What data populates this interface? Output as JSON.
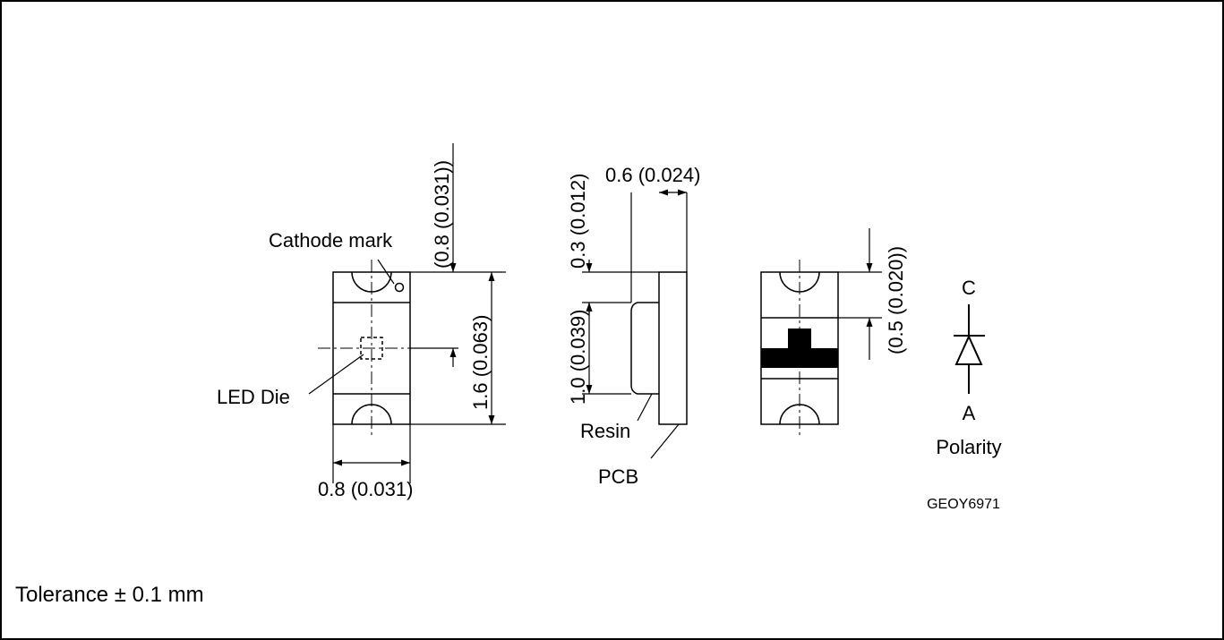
{
  "labels": {
    "cathode_mark": "Cathode mark",
    "led_die": "LED Die",
    "resin": "Resin",
    "pcb": "PCB",
    "polarity": "Polarity",
    "cathode_letter": "C",
    "anode_letter": "A",
    "drawing_code": "GEOY6971"
  },
  "dimensions": {
    "top_height": "(0.8 (0.031))",
    "length": "1.6 (0.063)",
    "width_bottom": "0.8 (0.031)",
    "side_width": "0.6 (0.024)",
    "side_top": "0.3 (0.012)",
    "side_height": "1.0 (0.039)",
    "pad": "(0.5 (0.020))"
  },
  "footer": {
    "tolerance": "Tolerance ± 0.1 mm"
  },
  "colors": {
    "ink": "#000000",
    "paper": "#ffffff"
  }
}
